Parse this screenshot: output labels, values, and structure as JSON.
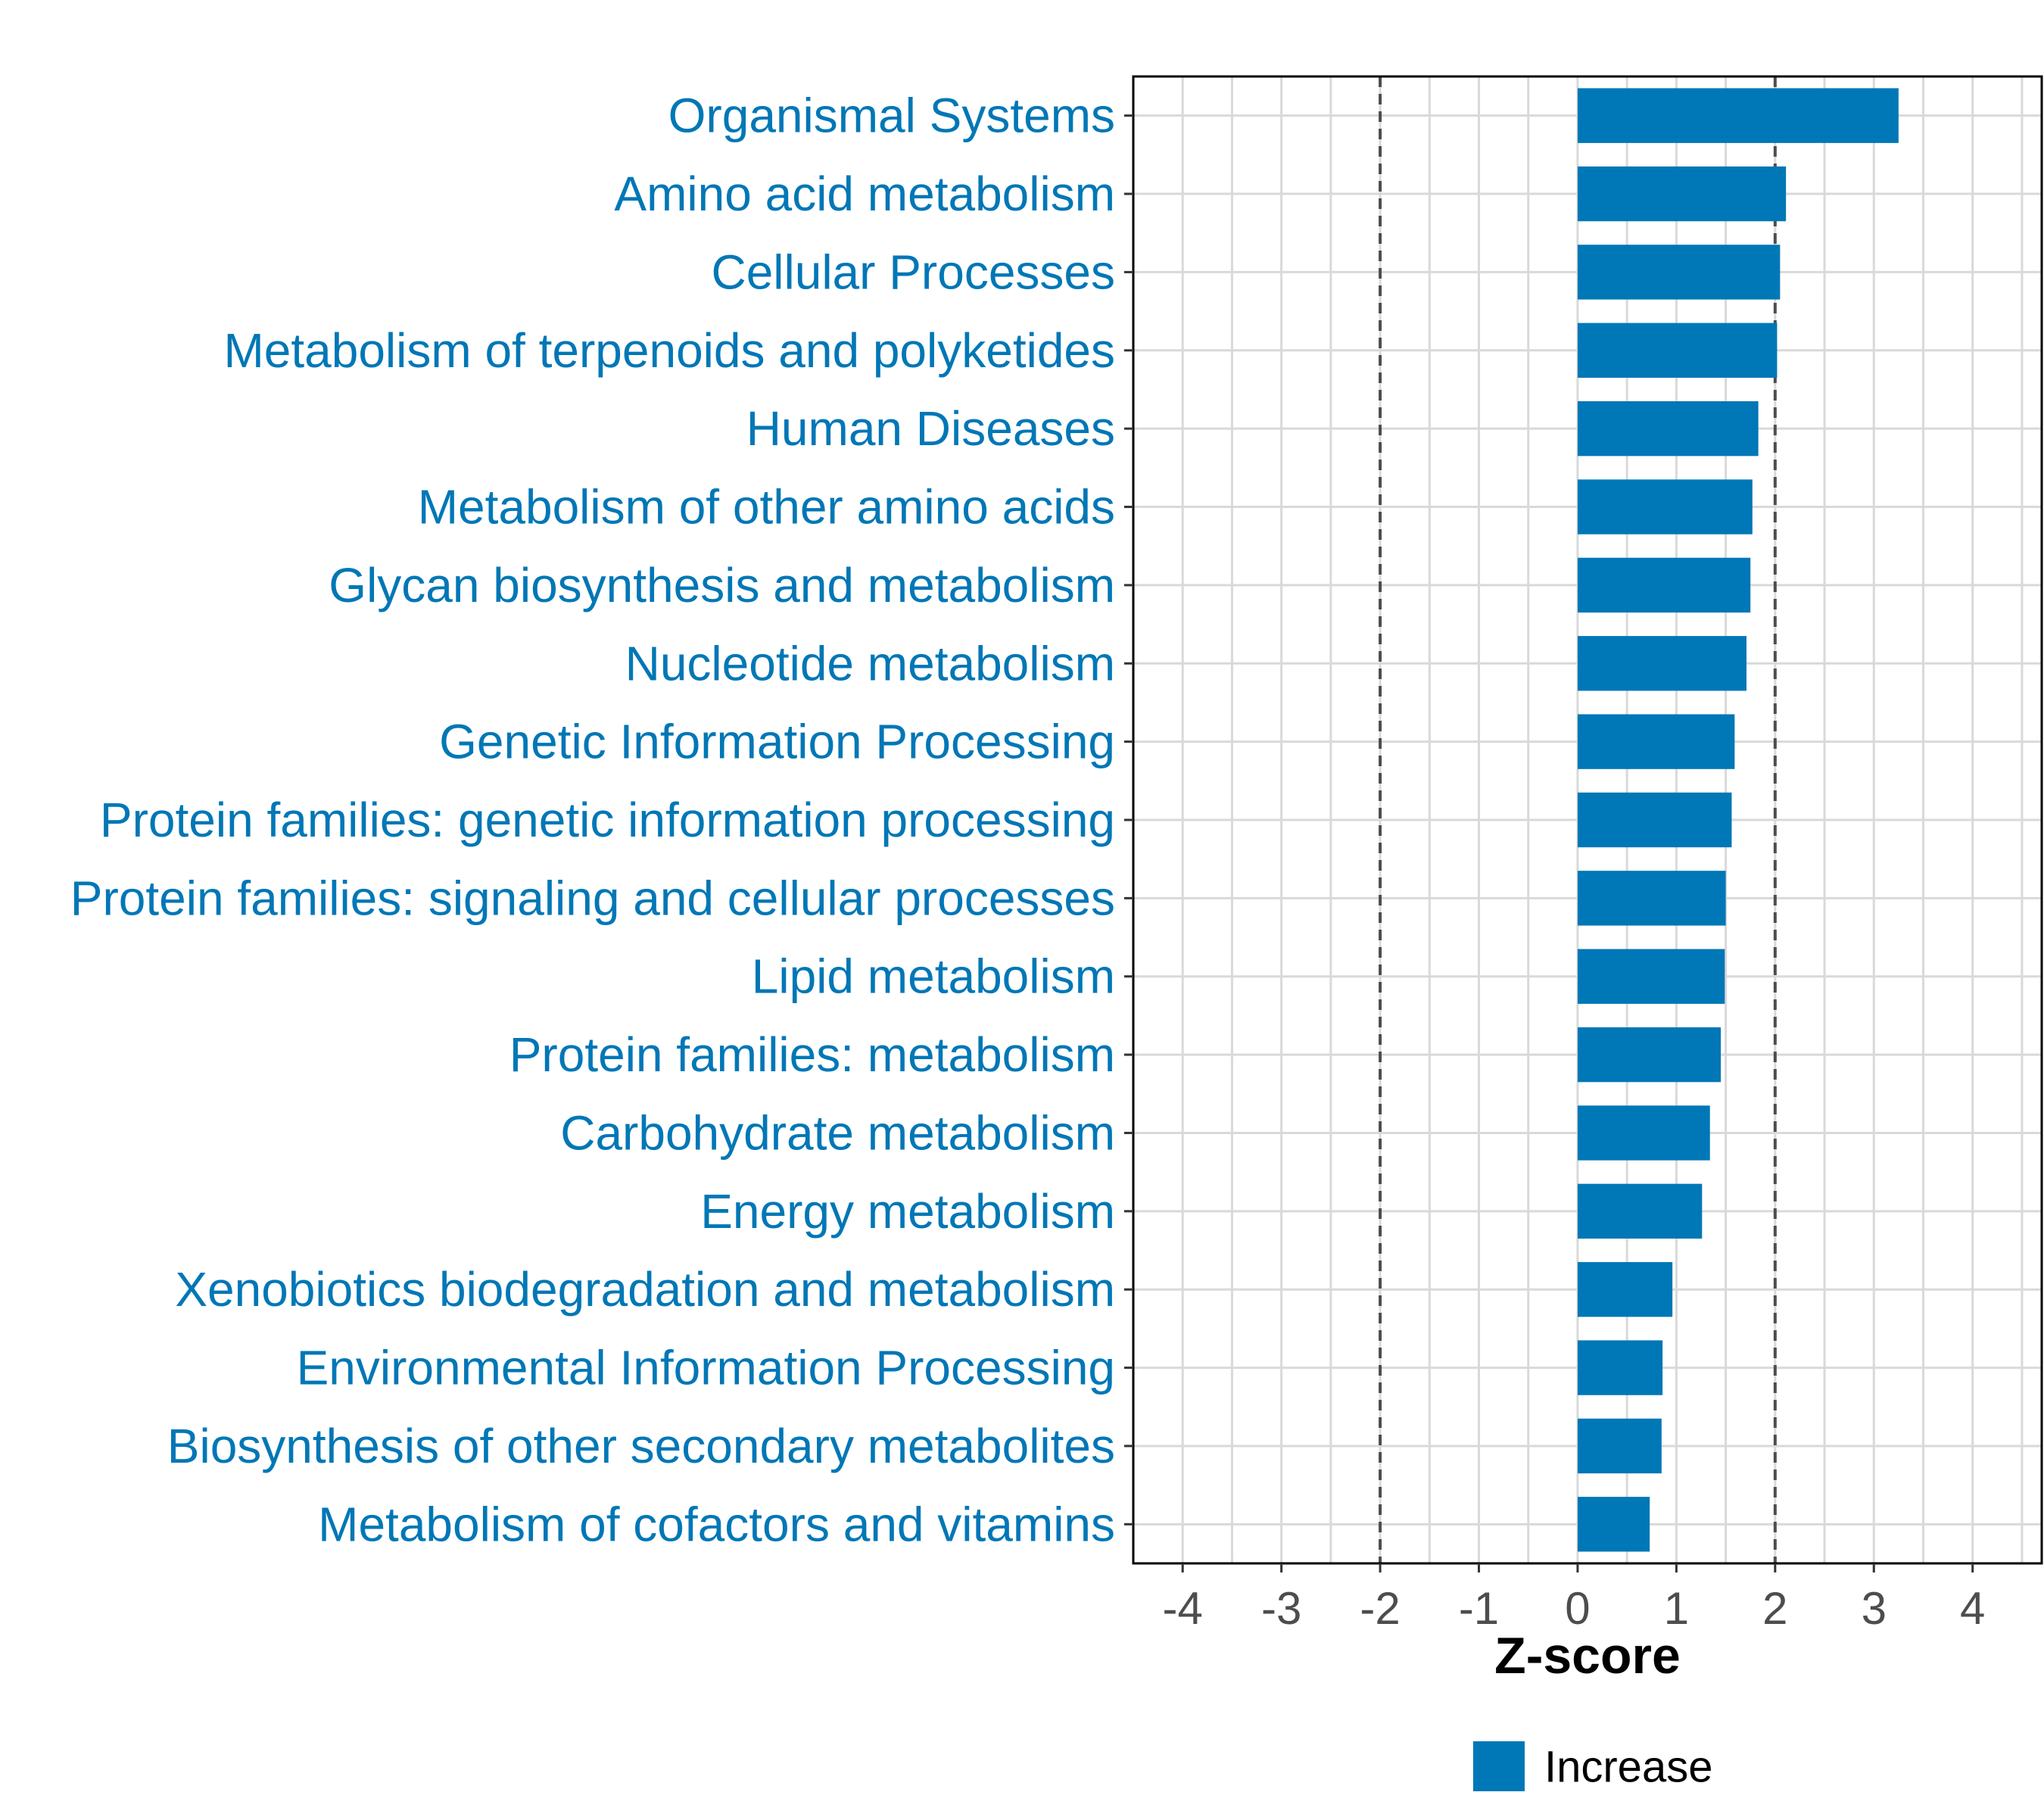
{
  "chart_data": {
    "type": "bar",
    "orientation": "horizontal",
    "categories": [
      "Organismal Systems",
      "Amino acid metabolism",
      "Cellular Processes",
      "Metabolism of terpenoids and polyketides",
      "Human Diseases",
      "Metabolism of other amino acids",
      "Glycan biosynthesis and metabolism",
      "Nucleotide metabolism",
      "Genetic Information Processing",
      "Protein families: genetic information processing",
      "Protein families: signaling and cellular processes",
      "Lipid metabolism",
      "Protein families: metabolism",
      "Carbohydrate metabolism",
      "Energy metabolism",
      "Xenobiotics biodegradation and metabolism",
      "Environmental Information Processing",
      "Biosynthesis of other secondary metabolites",
      "Metabolism of cofactors and vitamins"
    ],
    "values": [
      3.25,
      2.11,
      2.05,
      2.02,
      1.83,
      1.77,
      1.75,
      1.71,
      1.59,
      1.56,
      1.5,
      1.49,
      1.45,
      1.34,
      1.26,
      0.96,
      0.86,
      0.85,
      0.73
    ],
    "xlabel": "Z-score",
    "ylabel": "",
    "xlim": [
      -4.5,
      4.7
    ],
    "xticks": [
      "-4",
      "-3",
      "-2",
      "-1",
      "0",
      "1",
      "2",
      "3",
      "4"
    ],
    "reference_lines": [
      -2,
      2
    ],
    "grid": true,
    "legend": {
      "position": "bottom",
      "entries": [
        {
          "label": "Increase",
          "color": "#0077B6"
        }
      ]
    },
    "colors": {
      "bar": "#0077B6",
      "label": "#0077B6",
      "tick": "#4d4d4d",
      "grid": "#d9d9d9",
      "reference": "#4d4d4d"
    }
  }
}
